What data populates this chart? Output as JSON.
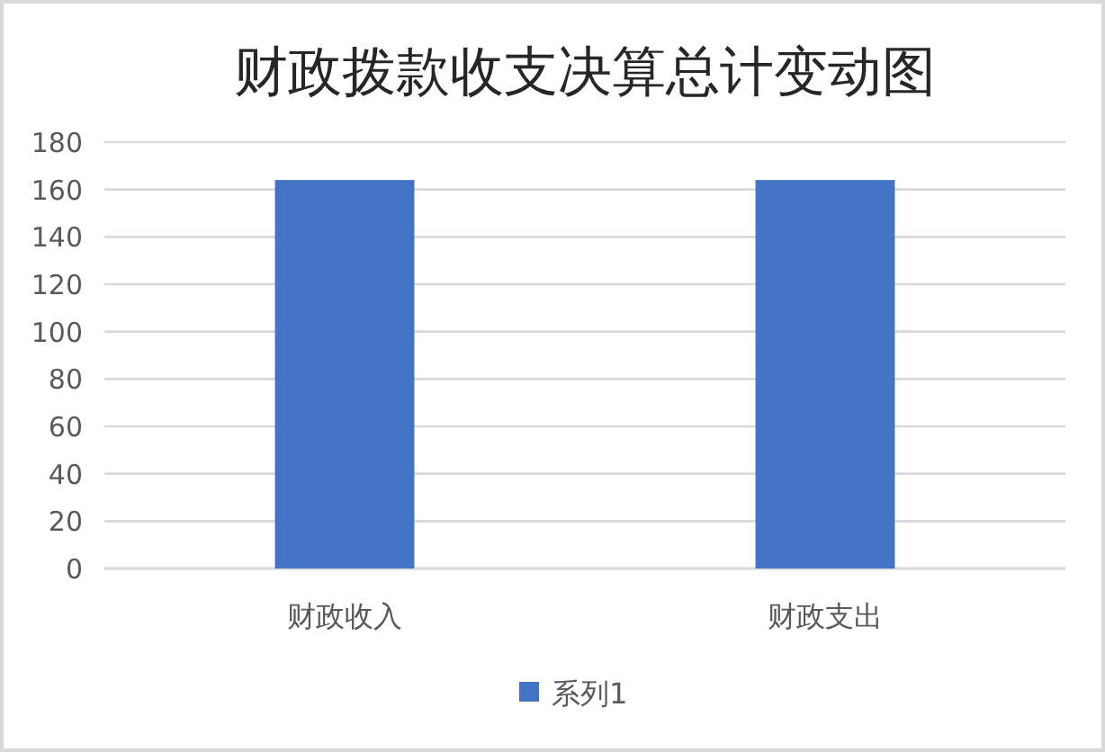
{
  "chart_data": {
    "type": "bar",
    "title": "财政拨款收支决算总计变动图",
    "categories": [
      "财政收入",
      "财政支出"
    ],
    "series": [
      {
        "name": "系列1",
        "color": "#4472c4",
        "values": [
          164,
          164
        ]
      }
    ],
    "ylim": [
      0,
      180
    ],
    "yticks": [
      0,
      20,
      40,
      60,
      80,
      100,
      120,
      140,
      160,
      180
    ],
    "grid": "y",
    "legend": "bottom"
  }
}
